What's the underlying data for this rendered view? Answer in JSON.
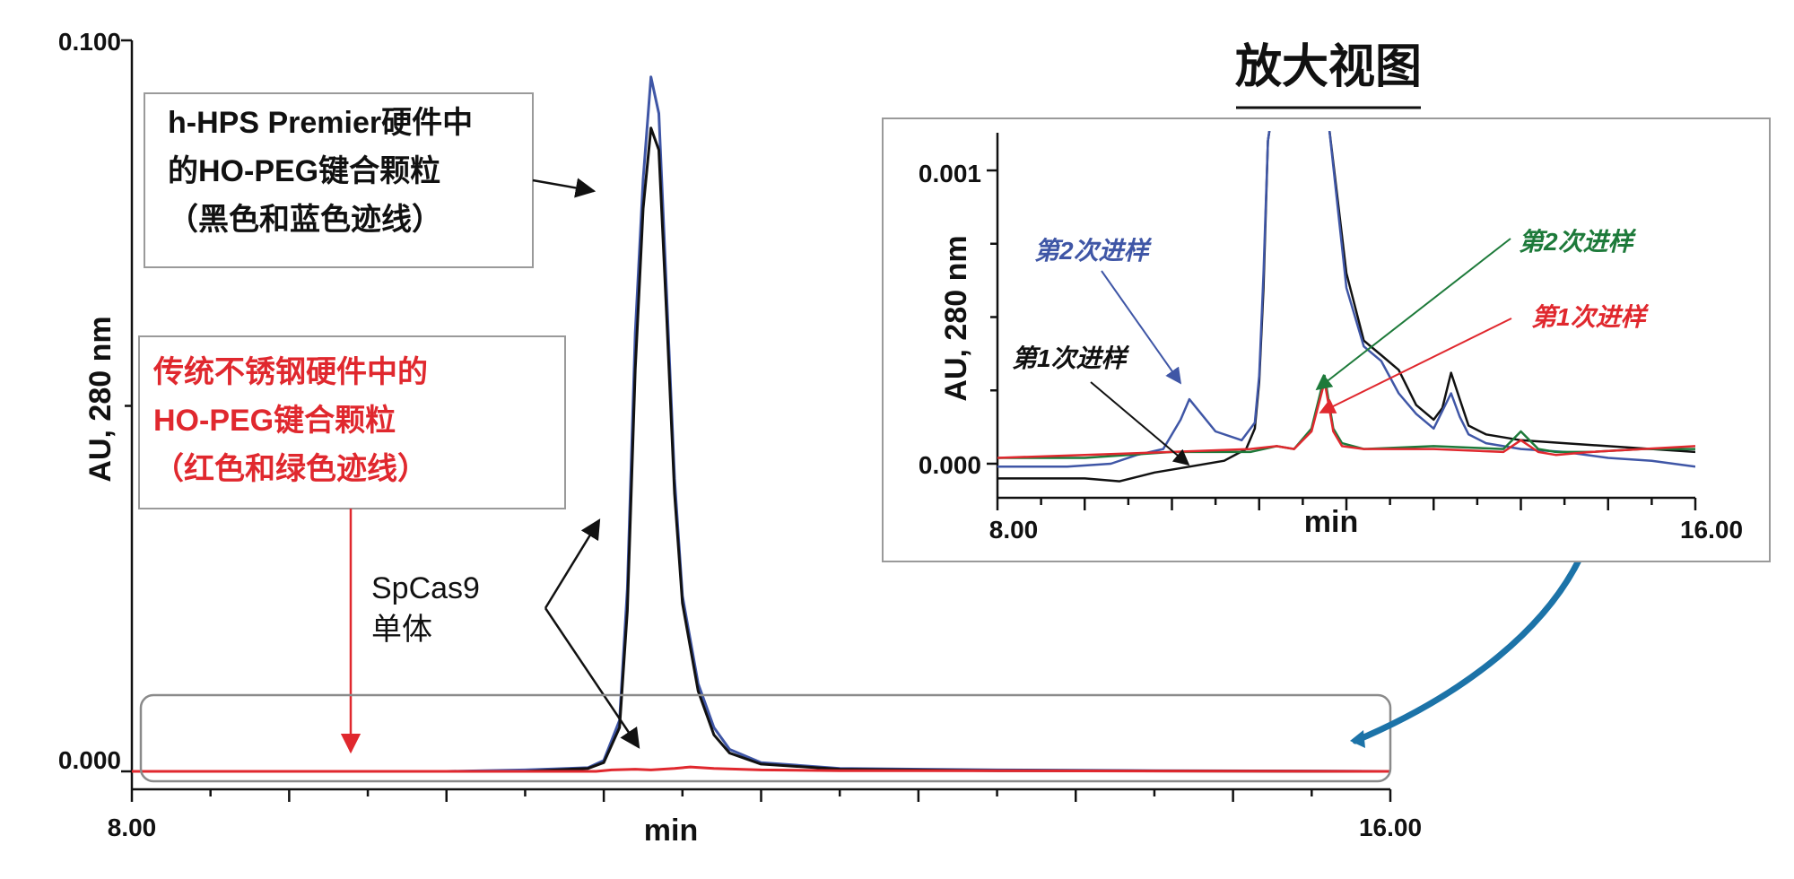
{
  "colors": {
    "black_trace": "#111111",
    "blue_trace": "#3f56a6",
    "red_trace": "#e0282e",
    "green_trace": "#1d7a3a",
    "arrow_teal": "#1c73a8",
    "box_border": "#9a9a9a"
  },
  "callouts": {
    "premier_lines": [
      "h-HPS Premier硬件中",
      "的HO-PEG键合颗粒",
      "（黑色和蓝色迹线）"
    ],
    "steel_lines": [
      "传统不锈钢硬件中的",
      "HO-PEG键合颗粒",
      "（红色和绿色迹线）"
    ],
    "monomer_lines": [
      "SpCas9",
      "单体"
    ]
  },
  "inset": {
    "title": "放大视图",
    "labels": {
      "blue_inj2": "第2次进样",
      "black_inj1": "第1次进样",
      "green_inj2": "第2次进样",
      "red_inj1": "第1次进样"
    }
  },
  "chart_data": [
    {
      "type": "line",
      "xlabel": "min",
      "ylabel": "AU, 280 nm",
      "xlim": [
        8.0,
        16.0
      ],
      "ylim": [
        0.0,
        0.1
      ],
      "x_tick_labels": [
        "8.00",
        "16.00"
      ],
      "y_tick_labels": [
        "0.100",
        "0.000"
      ],
      "y_tick_values": [
        0.1,
        0.05,
        0.0
      ],
      "series": [
        {
          "color": "#3f56a6",
          "x": [
            8.0,
            10.0,
            10.5,
            10.9,
            11.0,
            11.1,
            11.15,
            11.2,
            11.25,
            11.3,
            11.35,
            11.4,
            11.45,
            11.5,
            11.6,
            11.7,
            11.8,
            12.0,
            12.5,
            13.5,
            14.5,
            16.0
          ],
          "y": [
            0.0,
            0.0,
            0.0002,
            0.0005,
            0.0015,
            0.007,
            0.025,
            0.06,
            0.081,
            0.095,
            0.09,
            0.065,
            0.04,
            0.024,
            0.012,
            0.006,
            0.003,
            0.0012,
            0.0004,
            0.0002,
            0.0001,
            0.0
          ]
        },
        {
          "color": "#111111",
          "x": [
            8.0,
            10.5,
            10.9,
            11.0,
            11.1,
            11.15,
            11.2,
            11.25,
            11.3,
            11.35,
            11.4,
            11.45,
            11.5,
            11.6,
            11.7,
            11.8,
            12.0,
            12.5,
            13.5,
            16.0
          ],
          "y": [
            0.0,
            0.0,
            0.0004,
            0.0012,
            0.006,
            0.022,
            0.055,
            0.077,
            0.088,
            0.085,
            0.062,
            0.038,
            0.023,
            0.011,
            0.005,
            0.0025,
            0.001,
            0.0003,
            0.0001,
            0.0
          ]
        },
        {
          "color": "#e0282e",
          "x": [
            8.0,
            10.95,
            11.05,
            11.2,
            11.3,
            11.45,
            11.55,
            11.7,
            12.0,
            12.5,
            13.0,
            16.0
          ],
          "y": [
            0.0,
            0.0,
            0.0002,
            0.0003,
            0.0002,
            0.0004,
            0.0006,
            0.0004,
            0.0002,
            0.0001,
            0.0001,
            0.0
          ]
        }
      ]
    },
    {
      "type": "line",
      "xlabel": "min",
      "ylabel": "AU, 280 nm",
      "xlim": [
        8.0,
        16.0
      ],
      "ylim": [
        -0.0001,
        0.00115
      ],
      "x_tick_labels": [
        "8.00",
        "16.00"
      ],
      "y_tick_labels": [
        "0.001",
        "0.000"
      ],
      "y_tick_values": [
        0.001,
        0.00075,
        0.0005,
        0.00025,
        0.0
      ],
      "series": [
        {
          "color": "#111111",
          "x": [
            8.0,
            9.0,
            9.4,
            9.8,
            10.2,
            10.6,
            10.85,
            10.95,
            11.0,
            11.05,
            11.1,
            11.15,
            11.8,
            12.0,
            12.2,
            12.4,
            12.6,
            12.8,
            13.0,
            13.1,
            13.2,
            13.3,
            13.4,
            13.6,
            14.0,
            14.5,
            15.0,
            15.5,
            16.0
          ],
          "y": [
            -5e-05,
            -5e-05,
            -6e-05,
            -3e-05,
            -1e-05,
            1e-05,
            5e-05,
            0.00012,
            0.00028,
            0.0006,
            0.0011,
            0.0012,
            0.00115,
            0.00065,
            0.00042,
            0.00037,
            0.00032,
            0.0002,
            0.00015,
            0.00019,
            0.00031,
            0.00022,
            0.00013,
            0.0001,
            8e-05,
            7e-05,
            6e-05,
            5e-05,
            4e-05
          ]
        },
        {
          "color": "#3f56a6",
          "x": [
            8.0,
            8.8,
            9.3,
            9.6,
            9.9,
            10.1,
            10.2,
            10.5,
            10.8,
            10.95,
            11.0,
            11.05,
            11.1,
            11.15,
            11.8,
            12.0,
            12.2,
            12.4,
            12.6,
            12.8,
            13.0,
            13.2,
            13.3,
            13.4,
            13.6,
            14.0,
            14.5,
            15.0,
            15.5,
            16.0
          ],
          "y": [
            -1e-05,
            -1e-05,
            0.0,
            3e-05,
            5e-05,
            0.00015,
            0.00022,
            0.00011,
            8e-05,
            0.00014,
            0.0003,
            0.00065,
            0.0011,
            0.0012,
            0.00115,
            0.0006,
            0.0004,
            0.00035,
            0.00024,
            0.00017,
            0.00012,
            0.00024,
            0.00016,
            0.0001,
            7e-05,
            5e-05,
            4e-05,
            2e-05,
            1e-05,
            -1e-05
          ]
        },
        {
          "color": "#1d7a3a",
          "x": [
            8.0,
            9.0,
            10.0,
            10.9,
            11.2,
            11.4,
            11.6,
            11.75,
            11.85,
            11.95,
            12.2,
            13.0,
            13.8,
            14.0,
            14.2,
            14.4,
            14.8,
            15.4,
            16.0
          ],
          "y": [
            2e-05,
            2e-05,
            4e-05,
            4e-05,
            6e-05,
            5e-05,
            0.00012,
            0.0003,
            0.00012,
            7e-05,
            5e-05,
            6e-05,
            5e-05,
            0.00011,
            5e-05,
            4e-05,
            4e-05,
            5e-05,
            5e-05
          ]
        },
        {
          "color": "#e0282e",
          "x": [
            8.0,
            9.0,
            10.0,
            10.9,
            11.2,
            11.4,
            11.6,
            11.75,
            11.85,
            11.95,
            12.2,
            13.0,
            13.8,
            14.0,
            14.2,
            14.4,
            14.8,
            15.4,
            16.0
          ],
          "y": [
            2e-05,
            3e-05,
            4e-05,
            5e-05,
            6e-05,
            5e-05,
            0.00011,
            0.00028,
            0.00011,
            6e-05,
            5e-05,
            5e-05,
            4e-05,
            8e-05,
            4e-05,
            3e-05,
            4e-05,
            5e-05,
            6e-05
          ]
        }
      ]
    }
  ]
}
